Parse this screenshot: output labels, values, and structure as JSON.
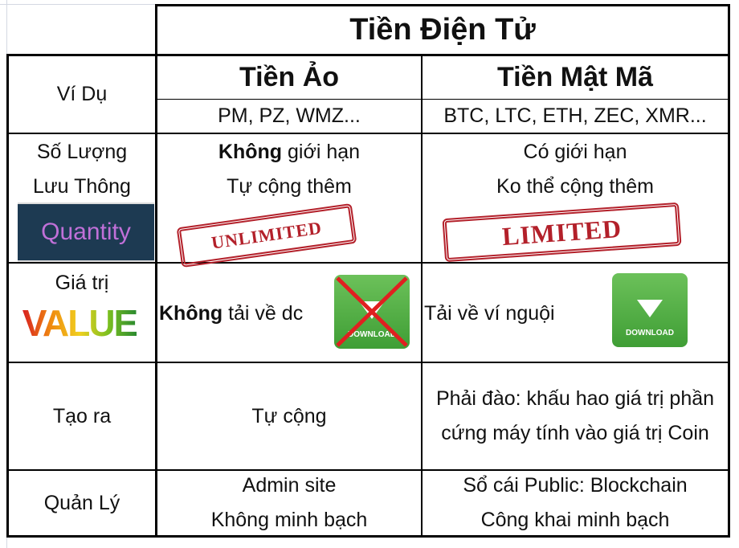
{
  "title": "Tiền Điện Tử",
  "columns": [
    "Tiền Ảo",
    "Tiền Mật Mã"
  ],
  "rows": {
    "example": {
      "label": "Ví Dụ",
      "virtual": "PM, PZ, WMZ...",
      "crypto": "BTC, LTC, ETH, ZEC, XMR..."
    },
    "supply": {
      "label_1": "Số Lượng",
      "label_2": "Lưu Thông",
      "image_text": "Quantity",
      "virtual_bold": "Không",
      "virtual_1": " giới hạn",
      "virtual_2": "Tự cộng thêm",
      "virtual_stamp": "UNLIMITED",
      "crypto_1": "Có giới hạn",
      "crypto_2": "Ko thể cộng thêm",
      "crypto_stamp": "LIMITED"
    },
    "value": {
      "label": "Giá trị",
      "image_text": "VALUE",
      "virtual_bold": "Không",
      "virtual": " tải về dc",
      "crypto": "Tải về ví nguội",
      "download_label": "DOWNLOAD"
    },
    "creation": {
      "label": "Tạo ra",
      "virtual": "Tự cộng",
      "crypto": "Phải đào: khấu hao giá trị phần cứng máy tính vào giá trị Coin"
    },
    "management": {
      "label": "Quản Lý",
      "virtual_1": "Admin site",
      "virtual_2": "Không minh bạch",
      "crypto_1": "Sổ cái Public: Blockchain",
      "crypto_2": "Công khai minh bạch"
    }
  },
  "colors": {
    "stamp_red": "#b3202a",
    "download_green": "#4caf3f",
    "cross_red": "#e02020"
  }
}
